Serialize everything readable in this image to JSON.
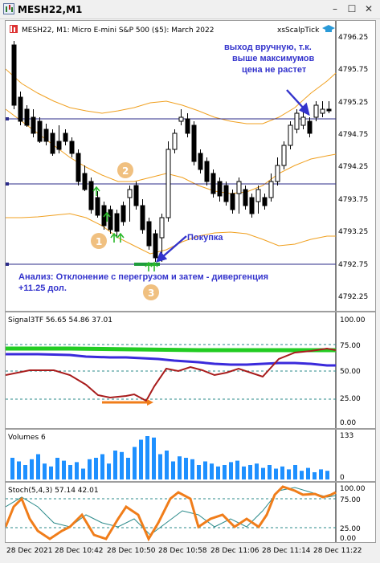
{
  "window": {
    "title": "MESH22,M1",
    "minimize_glyph": "–",
    "maximize_glyph": "☐",
    "close_glyph": "✕"
  },
  "main_chart": {
    "header": "MESH22, M1:  Micro E-mini S&P 500 ($5): March 2022",
    "indicator_tag": "xsScalpTick",
    "price_labels": [
      "4796.25",
      "4795.75",
      "4795.25",
      "4794.75",
      "4794.25",
      "4793.75",
      "4793.25",
      "4792.75",
      "4792.25"
    ],
    "annotation_exit": [
      "выход вручную, т.к.",
      "выше максимумов",
      "цена не растет"
    ],
    "annotation_buy": "Покупка",
    "annotation_analysis": [
      "Анализ: Отклонение с перегрузом и затем - дивергенция",
      "+11.25 дол."
    ],
    "badges": [
      "1",
      "2",
      "3"
    ],
    "colors": {
      "bull": "#ffffff",
      "bear": "#000000",
      "band": "#f0a020",
      "level": "#2b2b8a",
      "arrow_up": "#2bb82b",
      "annot": "#3333cc",
      "badge": "#f0c080"
    }
  },
  "signal_panel": {
    "header": "Signal3TF 56.65 54.86 37.01",
    "y_labels": [
      "100.00",
      "75.00",
      "50.00",
      "25.00",
      "0.00"
    ],
    "colors": {
      "green": "#22cc22",
      "blue": "#3a2adb",
      "red": "#a81c1c",
      "orange": "#f07d1a"
    }
  },
  "volumes_panel": {
    "header": "Volumes 6",
    "y_labels": [
      "133",
      "0"
    ],
    "bar_color": "#1e90ff"
  },
  "stoch_panel": {
    "header": "Stoch(5,4,3) 57.14 42.01",
    "y_labels": [
      "100.00",
      "75.00",
      "25.00",
      "0.00"
    ],
    "colors": {
      "main": "#f07d1a",
      "signal": "#2a8a8a"
    }
  },
  "time_axis": [
    "28 Dec 2021",
    "28 Dec 10:42",
    "28 Dec 10:50",
    "28 Dec 10:58",
    "28 Dec 11:06",
    "28 Dec 11:14",
    "28 Dec 11:22"
  ]
}
